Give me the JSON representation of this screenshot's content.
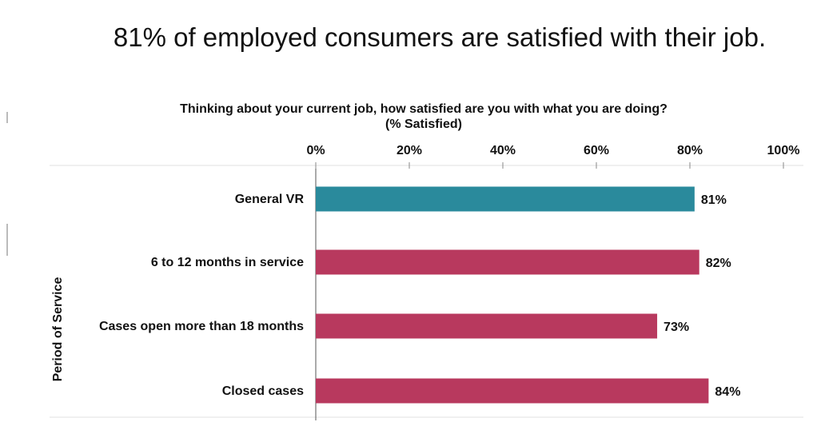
{
  "chart_data": {
    "type": "bar",
    "orientation": "horizontal",
    "title": "81% of employed consumers are satisfied with their job.",
    "subtitle_lines": [
      "Thinking about your current job, how satisfied are you with what you are doing?",
      "(% Satisfied)"
    ],
    "ylabel": "Period of Service",
    "xlim": [
      0,
      100
    ],
    "x_ticks": [
      "0%",
      "20%",
      "40%",
      "60%",
      "80%",
      "100%"
    ],
    "x_tick_values": [
      0,
      20,
      40,
      60,
      80,
      100
    ],
    "axis_position": "top",
    "grid": false,
    "categories": [
      "General VR",
      "6 to 12 months in service",
      "Cases open more than 18 months",
      "Closed cases"
    ],
    "values": [
      81,
      82,
      73,
      84
    ],
    "value_labels": [
      "81%",
      "82%",
      "73%",
      "84%"
    ],
    "colors": [
      "#2a8a9c",
      "#b8395e",
      "#b8395e",
      "#b8395e"
    ]
  }
}
